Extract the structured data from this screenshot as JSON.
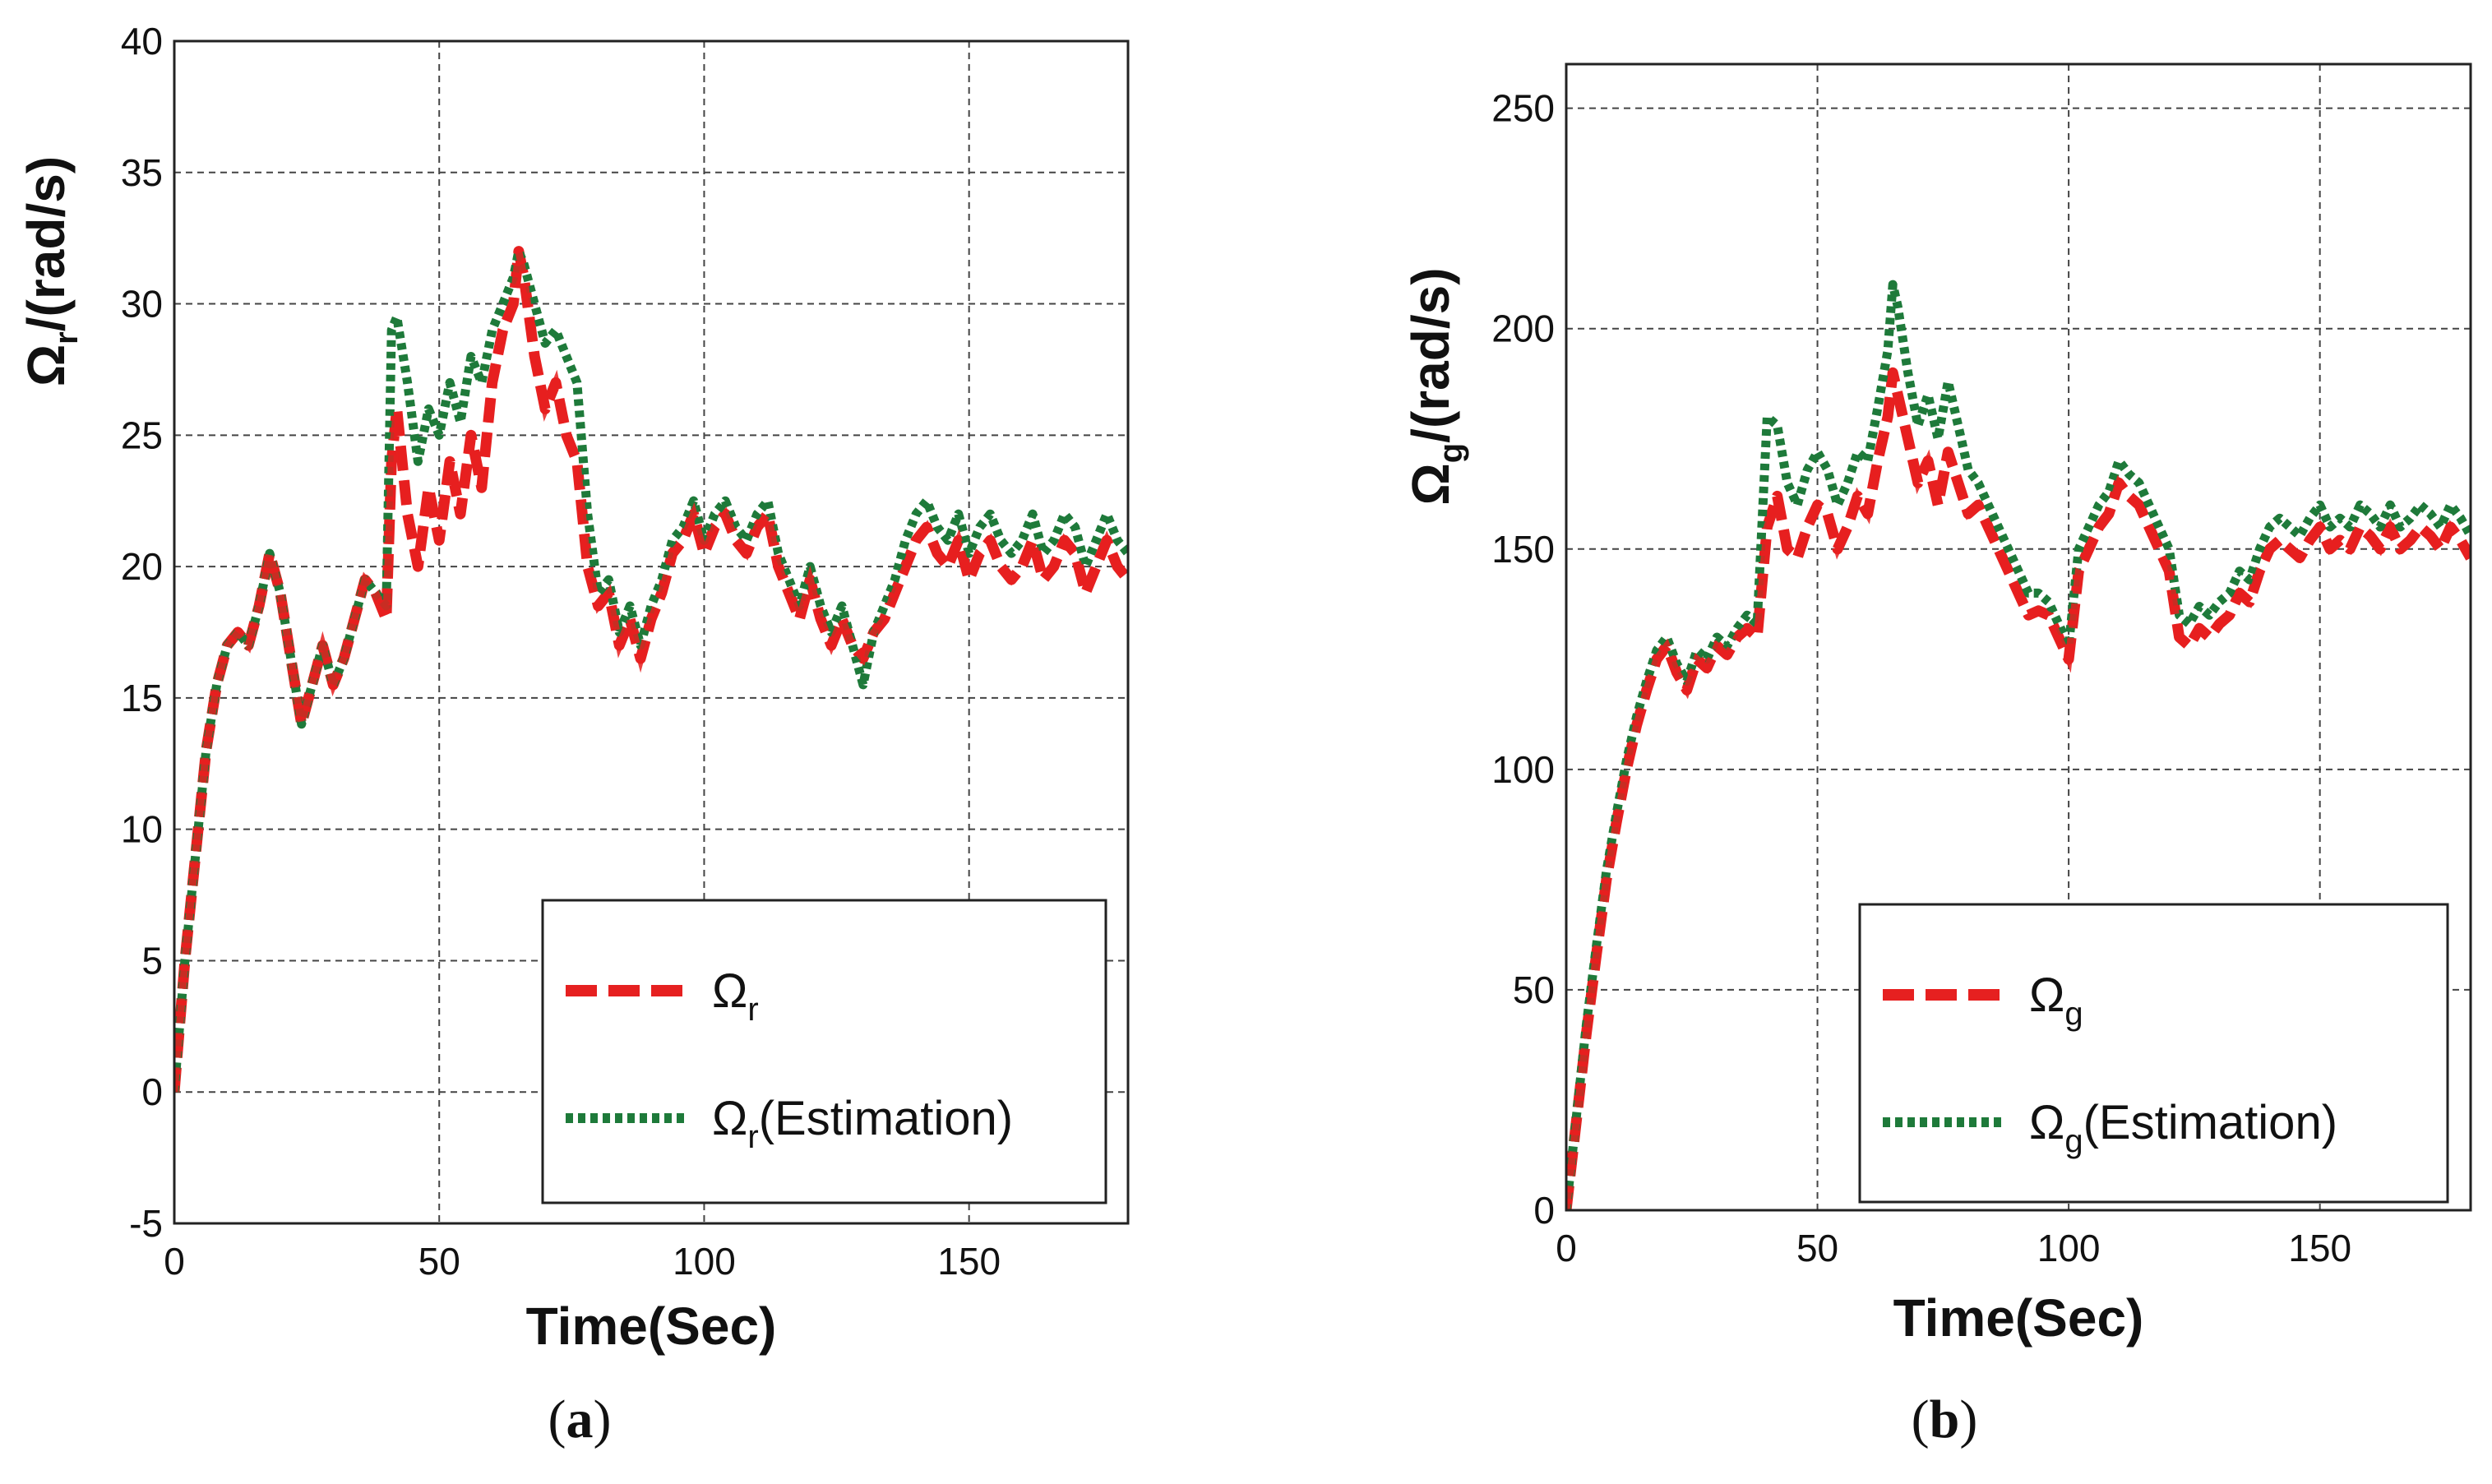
{
  "chart_data": [
    {
      "id": "a",
      "type": "line",
      "caption_letter": "a",
      "xlabel": "Time(Sec)",
      "ylabel_symbol": "Ω",
      "ylabel_sub": "r",
      "ylabel_unit": "/(rad/s)",
      "xlim": [
        0,
        180
      ],
      "ylim": [
        -5,
        40
      ],
      "xticks": [
        0,
        50,
        100,
        150
      ],
      "yticks": [
        -5,
        0,
        5,
        10,
        15,
        20,
        25,
        30,
        35,
        40
      ],
      "grid": true,
      "legend_position": "bottom-right",
      "series": [
        {
          "name": "Ω_r",
          "label_symbol": "Ω",
          "label_sub": "r",
          "label_suffix": "",
          "color": "#e62020",
          "style": "dashed",
          "x": [
            0,
            2,
            4,
            6,
            8,
            10,
            12,
            14,
            16,
            18,
            20,
            22,
            24,
            26,
            28,
            30,
            32,
            34,
            36,
            38,
            40,
            41,
            42,
            44,
            46,
            48,
            50,
            52,
            54,
            56,
            58,
            60,
            62,
            64,
            65,
            66,
            68,
            70,
            72,
            74,
            76,
            78,
            80,
            82,
            84,
            86,
            88,
            90,
            92,
            94,
            96,
            98,
            100,
            102,
            104,
            106,
            108,
            110,
            112,
            114,
            116,
            118,
            120,
            122,
            124,
            126,
            128,
            130,
            132,
            134,
            136,
            138,
            140,
            142,
            144,
            146,
            148,
            150,
            152,
            154,
            156,
            158,
            160,
            162,
            164,
            166,
            168,
            170,
            172,
            174,
            176,
            178,
            180
          ],
          "y": [
            0,
            5,
            9,
            13,
            15.5,
            17,
            17.5,
            17,
            18.5,
            20.5,
            19,
            16.5,
            14,
            15.5,
            17,
            15.5,
            16.5,
            18,
            19.5,
            19,
            18,
            24,
            26,
            22,
            20,
            23,
            21,
            24,
            22,
            25,
            23,
            27,
            29,
            30,
            32,
            31,
            28,
            26,
            27,
            25,
            24,
            20,
            18.5,
            19,
            17,
            18,
            16.5,
            18,
            19,
            20.5,
            21,
            22,
            20.5,
            21.5,
            22,
            21,
            20.5,
            21.5,
            22,
            20,
            19,
            18,
            19.5,
            18,
            17,
            18,
            17,
            16.5,
            17.5,
            18,
            19,
            20,
            21,
            21.5,
            20.5,
            20,
            21,
            19.5,
            20.5,
            21,
            20,
            19.5,
            20,
            21,
            19.5,
            20,
            21,
            20.5,
            19,
            20,
            21,
            20,
            19.5
          ]
        },
        {
          "name": "Ω_r(Estimation)",
          "label_symbol": "Ω",
          "label_sub": "r",
          "label_suffix": "(Estimation)",
          "color": "#1e7a3a",
          "style": "dotted",
          "x": [
            0,
            2,
            4,
            6,
            8,
            10,
            12,
            14,
            16,
            18,
            20,
            22,
            24,
            26,
            28,
            30,
            32,
            34,
            36,
            38,
            40,
            41,
            42,
            44,
            46,
            48,
            50,
            52,
            54,
            56,
            58,
            60,
            62,
            64,
            65,
            66,
            68,
            70,
            72,
            74,
            76,
            78,
            80,
            82,
            84,
            86,
            88,
            90,
            92,
            94,
            96,
            98,
            100,
            102,
            104,
            106,
            108,
            110,
            112,
            114,
            116,
            118,
            120,
            122,
            124,
            126,
            128,
            130,
            132,
            134,
            136,
            138,
            140,
            142,
            144,
            146,
            148,
            150,
            152,
            154,
            156,
            158,
            160,
            162,
            164,
            166,
            168,
            170,
            172,
            174,
            176,
            178,
            180
          ],
          "y": [
            0,
            5,
            9,
            13,
            15.5,
            17,
            17.5,
            17,
            18.5,
            20.5,
            19,
            16.5,
            14,
            15.5,
            17,
            15.5,
            16.5,
            18,
            19.5,
            19,
            18.5,
            29,
            29.5,
            27,
            24,
            26,
            25,
            27,
            25.5,
            28,
            27,
            29,
            30,
            31,
            32,
            31.5,
            30,
            28.5,
            29,
            28,
            27,
            22,
            19,
            19.5,
            17.5,
            18.5,
            17,
            18.5,
            19.5,
            21,
            21.5,
            22.5,
            21,
            22,
            22.5,
            21.5,
            21,
            22,
            22.5,
            20.5,
            19.5,
            18.5,
            20,
            18.5,
            17.5,
            18.5,
            17,
            15.5,
            17.5,
            18.5,
            19.5,
            21,
            22,
            22.5,
            21.5,
            21,
            22,
            20.5,
            21.5,
            22,
            21,
            20.5,
            21,
            22,
            20.5,
            21,
            22,
            21.5,
            20,
            21,
            22,
            21,
            20.5
          ]
        }
      ]
    },
    {
      "id": "b",
      "type": "line",
      "caption_letter": "b",
      "xlabel": "Time(Sec)",
      "ylabel_symbol": "Ω",
      "ylabel_sub": "g",
      "ylabel_unit": "/(rad/s)",
      "xlim": [
        0,
        180
      ],
      "ylim": [
        0,
        260
      ],
      "xticks": [
        0,
        50,
        100,
        150
      ],
      "yticks": [
        0,
        50,
        100,
        150,
        200,
        250
      ],
      "grid": true,
      "legend_position": "bottom-right",
      "series": [
        {
          "name": "Ω_g",
          "label_symbol": "Ω",
          "label_sub": "g",
          "label_suffix": "",
          "color": "#e62020",
          "style": "dashed",
          "x": [
            0,
            2,
            4,
            6,
            8,
            10,
            12,
            14,
            16,
            18,
            20,
            22,
            24,
            26,
            28,
            30,
            32,
            34,
            36,
            38,
            40,
            42,
            44,
            46,
            48,
            50,
            52,
            54,
            56,
            58,
            60,
            62,
            64,
            65,
            66,
            68,
            70,
            72,
            74,
            76,
            78,
            80,
            82,
            84,
            86,
            88,
            90,
            92,
            94,
            96,
            98,
            100,
            102,
            104,
            106,
            108,
            110,
            112,
            114,
            116,
            118,
            120,
            122,
            124,
            126,
            128,
            130,
            132,
            134,
            136,
            138,
            140,
            142,
            144,
            146,
            148,
            150,
            152,
            154,
            156,
            158,
            160,
            162,
            164,
            166,
            168,
            170,
            172,
            174,
            176,
            178,
            180
          ],
          "y": [
            0,
            20,
            40,
            58,
            75,
            88,
            100,
            110,
            118,
            125,
            128,
            122,
            118,
            125,
            123,
            128,
            126,
            130,
            132,
            130,
            155,
            162,
            150,
            148,
            155,
            160,
            158,
            150,
            155,
            162,
            158,
            170,
            180,
            190,
            185,
            175,
            165,
            170,
            160,
            172,
            165,
            158,
            160,
            155,
            150,
            145,
            140,
            135,
            136,
            135,
            130,
            125,
            145,
            150,
            155,
            158,
            165,
            162,
            160,
            155,
            150,
            145,
            130,
            128,
            132,
            130,
            133,
            135,
            140,
            138,
            145,
            150,
            152,
            150,
            148,
            152,
            155,
            150,
            152,
            150,
            155,
            153,
            150,
            155,
            150,
            152,
            155,
            153,
            150,
            155,
            152,
            148
          ]
        },
        {
          "name": "Ω_g(Estimation)",
          "label_symbol": "Ω",
          "label_sub": "g",
          "label_suffix": "(Estimation)",
          "color": "#1e7a3a",
          "style": "dotted",
          "x": [
            0,
            2,
            4,
            6,
            8,
            10,
            12,
            14,
            16,
            18,
            20,
            22,
            24,
            26,
            28,
            30,
            32,
            34,
            36,
            38,
            40,
            42,
            44,
            46,
            48,
            50,
            52,
            54,
            56,
            58,
            60,
            62,
            64,
            65,
            66,
            68,
            70,
            72,
            74,
            76,
            78,
            80,
            82,
            84,
            86,
            88,
            90,
            92,
            94,
            96,
            98,
            100,
            102,
            104,
            106,
            108,
            110,
            112,
            114,
            116,
            118,
            120,
            122,
            124,
            126,
            128,
            130,
            132,
            134,
            136,
            138,
            140,
            142,
            144,
            146,
            148,
            150,
            152,
            154,
            156,
            158,
            160,
            162,
            164,
            166,
            168,
            170,
            172,
            174,
            176,
            178,
            180
          ],
          "y": [
            0,
            21,
            42,
            60,
            77,
            90,
            102,
            112,
            120,
            127,
            130,
            124,
            120,
            127,
            125,
            130,
            128,
            132,
            135,
            133,
            180,
            178,
            165,
            160,
            168,
            172,
            168,
            160,
            165,
            172,
            170,
            182,
            195,
            210,
            205,
            190,
            178,
            185,
            175,
            188,
            178,
            168,
            165,
            160,
            155,
            150,
            145,
            140,
            140,
            138,
            133,
            128,
            150,
            155,
            160,
            163,
            170,
            167,
            165,
            160,
            155,
            150,
            135,
            133,
            137,
            135,
            138,
            140,
            145,
            143,
            150,
            155,
            157,
            155,
            153,
            157,
            160,
            155,
            157,
            155,
            160,
            158,
            155,
            160,
            155,
            157,
            160,
            158,
            155,
            160,
            157,
            153
          ]
        }
      ]
    }
  ]
}
